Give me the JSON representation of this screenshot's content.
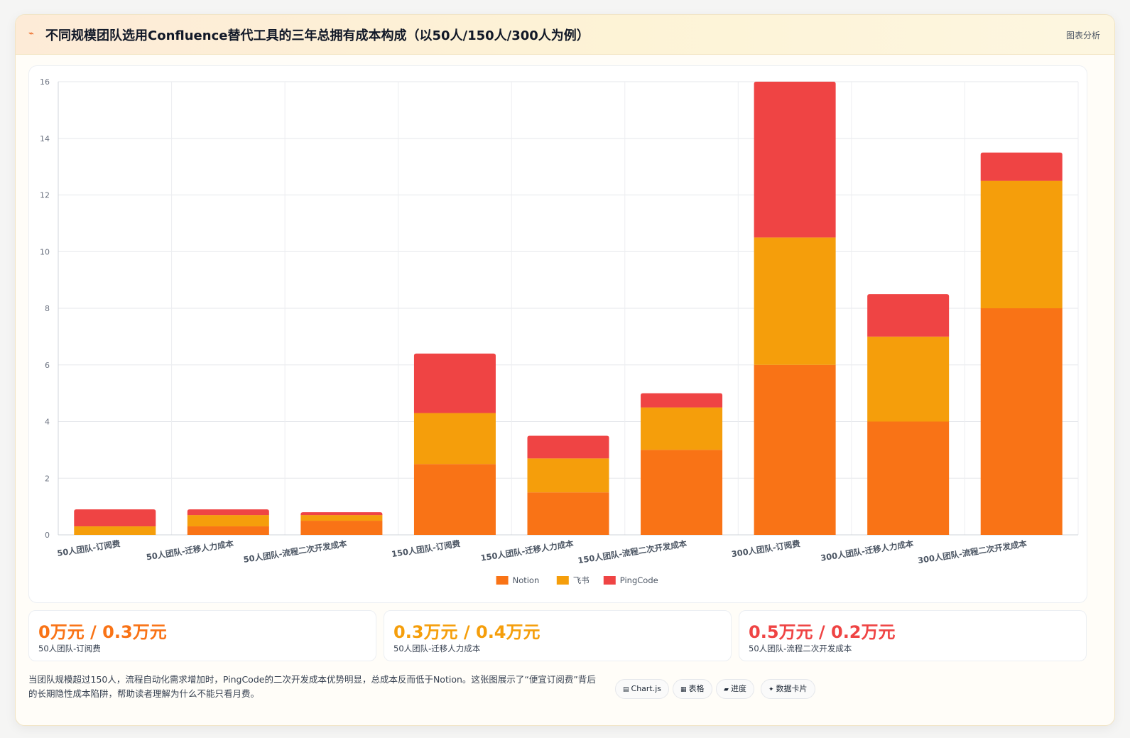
{
  "header": {
    "logo": "⌁",
    "title": "不同规模团队选用Confluence替代工具的三年总拥有成本构成（以50人/150人/300人为例）",
    "tag": "图表分析"
  },
  "chart_data": {
    "type": "bar",
    "stacked": true,
    "categories": [
      "50人团队-订阅费",
      "50人团队-迁移人力成本",
      "50人团队-流程二次开发成本",
      "150人团队-订阅费",
      "150人团队-迁移人力成本",
      "150人团队-流程二次开发成本",
      "300人团队-订阅费",
      "300人团队-迁移人力成本",
      "300人团队-流程二次开发成本"
    ],
    "series": [
      {
        "name": "Notion",
        "color": "#f97316",
        "values": [
          0,
          0.3,
          0.5,
          2.5,
          1.5,
          3,
          6,
          4,
          8
        ]
      },
      {
        "name": "飞书",
        "color": "#f59e0b",
        "values": [
          0.3,
          0.4,
          0.2,
          1.8,
          1.2,
          1.5,
          4.5,
          3,
          4.5
        ]
      },
      {
        "name": "PingCode",
        "color": "#ef4444",
        "values": [
          0.6,
          0.2,
          0.1,
          2.1,
          0.8,
          0.5,
          5.5,
          1.5,
          1
        ]
      }
    ],
    "ylim": [
      0,
      16
    ],
    "yticks": [
      "0",
      "2",
      "4",
      "6",
      "8",
      "10",
      "12",
      "14",
      "16"
    ],
    "legend_position": "bottom",
    "grid": true
  },
  "kpis": [
    {
      "value": "0万元 / 0.3万元",
      "label": "50人团队-订阅费",
      "color": "#f97316"
    },
    {
      "value": "0.3万元 / 0.4万元",
      "label": "50人团队-迁移人力成本",
      "color": "#f59e0b"
    },
    {
      "value": "0.5万元 / 0.2万元",
      "label": "50人团队-流程二次开发成本",
      "color": "#ef4444"
    }
  ],
  "note": "当团队规模超过150人，流程自动化需求增加时，PingCode的二次开发成本优势明显，总成本反而低于Notion。这张图展示了“便宜订阅费”背后的长期隐性成本陷阱，帮助读者理解为什么不能只看月费。",
  "chips": [
    {
      "icon": "▤",
      "label": "Chart.js",
      "icon_name": "chart-icon"
    },
    {
      "icon": "▦",
      "label": "表格",
      "icon_name": "table-icon"
    },
    {
      "icon": "▰",
      "label": "进度",
      "icon_name": "progress-icon"
    },
    {
      "icon": "✦",
      "label": "数据卡片",
      "icon_name": "card-icon"
    }
  ]
}
